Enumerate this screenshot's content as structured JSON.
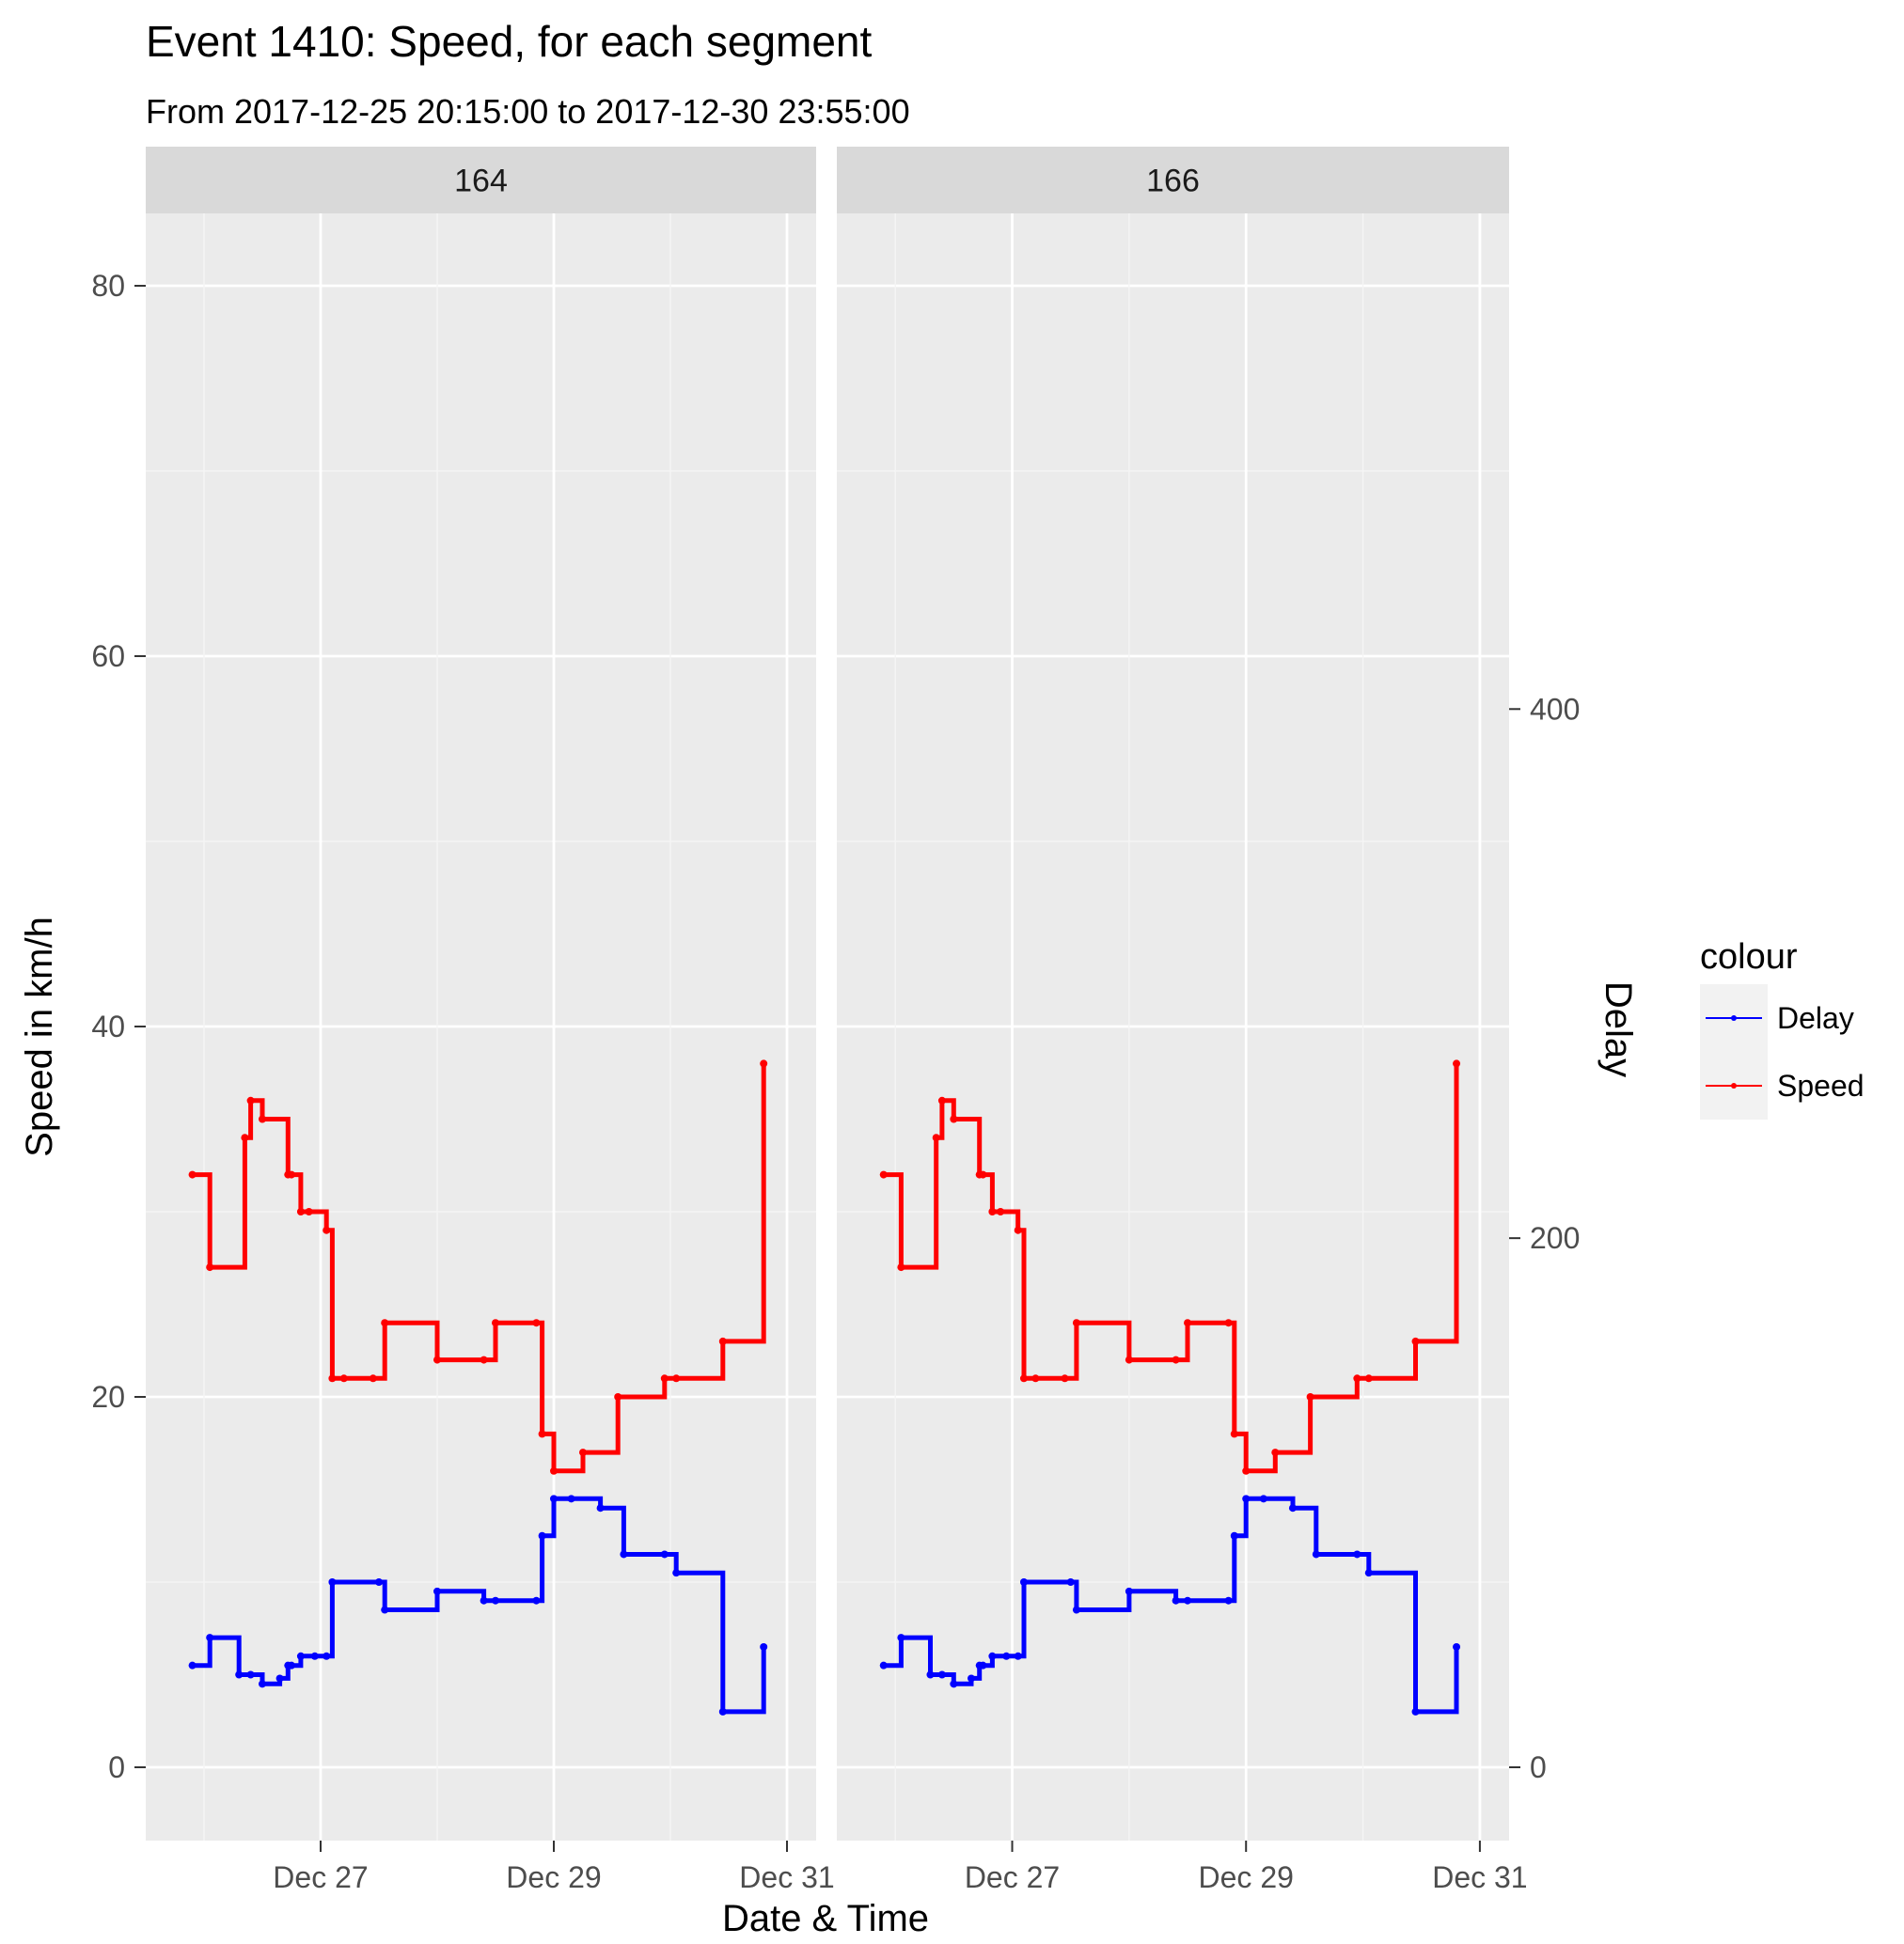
{
  "chart_data": {
    "type": "line",
    "title": "Event 1410: Speed, for each segment",
    "subtitle": "From 2017-12-25 20:15:00 to 2017-12-30 23:55:00",
    "xlabel": "Date & Time",
    "ylabel": "Speed in km/h",
    "y2label": "Delay",
    "x_ticks": [
      "Dec 27",
      "Dec 29",
      "Dec 31"
    ],
    "x_tick_dates": [
      2,
      4,
      6
    ],
    "y_ticks": [
      0,
      20,
      40,
      60,
      80
    ],
    "y2_ticks": [
      0,
      200,
      400
    ],
    "ylim": [
      -4,
      85
    ],
    "y2_per_y": 7,
    "xlim": [
      "2017-12-25 13:00",
      "2017-12-31 07:00"
    ],
    "grid": true,
    "legend": {
      "title": "colour",
      "position": "right",
      "entries": [
        {
          "label": "Delay",
          "color": "#0000ff"
        },
        {
          "label": "Speed",
          "color": "#ff0000"
        }
      ]
    },
    "facets": [
      {
        "label": "164",
        "series": [
          {
            "name": "Speed",
            "color": "#ff0000",
            "x": [
              0.9,
              1.05,
              1.35,
              1.4,
              1.5,
              1.72,
              1.75,
              1.83,
              1.9,
              2.05,
              2.1,
              2.2,
              2.45,
              2.55,
              3.0,
              3.4,
              3.5,
              3.85,
              3.9,
              4.0,
              4.25,
              4.55,
              4.95,
              5.05,
              5.45,
              5.8
            ],
            "values": [
              32,
              27,
              34,
              36,
              35,
              32,
              32,
              30,
              30,
              29,
              21,
              21,
              21,
              24,
              22,
              22,
              24,
              24,
              18,
              16,
              17,
              20,
              21,
              21,
              23,
              38
            ]
          },
          {
            "name": "Delay",
            "color": "#0000ff",
            "x": [
              0.9,
              1.05,
              1.3,
              1.4,
              1.5,
              1.65,
              1.72,
              1.75,
              1.83,
              1.95,
              2.05,
              2.1,
              2.5,
              2.55,
              3.0,
              3.4,
              3.5,
              3.85,
              3.9,
              4.0,
              4.15,
              4.4,
              4.6,
              4.95,
              5.05,
              5.45,
              5.8
            ],
            "values": [
              5.5,
              7.0,
              5.0,
              5.0,
              4.5,
              4.8,
              5.5,
              5.5,
              6.0,
              6.0,
              6.0,
              10.0,
              10.0,
              8.5,
              9.5,
              9.0,
              9.0,
              9.0,
              12.5,
              14.5,
              14.5,
              14.0,
              11.5,
              11.5,
              10.5,
              3.0,
              6.5
            ]
          }
        ]
      },
      {
        "label": "166",
        "series": [
          {
            "name": "Speed",
            "color": "#ff0000",
            "x": [
              0.9,
              1.05,
              1.35,
              1.4,
              1.5,
              1.72,
              1.75,
              1.83,
              1.9,
              2.05,
              2.1,
              2.2,
              2.45,
              2.55,
              3.0,
              3.4,
              3.5,
              3.85,
              3.9,
              4.0,
              4.25,
              4.55,
              4.95,
              5.05,
              5.45,
              5.8
            ],
            "values": [
              32,
              27,
              34,
              36,
              35,
              32,
              32,
              30,
              30,
              29,
              21,
              21,
              21,
              24,
              22,
              22,
              24,
              24,
              18,
              16,
              17,
              20,
              21,
              21,
              23,
              38
            ]
          },
          {
            "name": "Delay",
            "color": "#0000ff",
            "x": [
              0.9,
              1.05,
              1.3,
              1.4,
              1.5,
              1.65,
              1.72,
              1.75,
              1.83,
              1.95,
              2.05,
              2.1,
              2.5,
              2.55,
              3.0,
              3.4,
              3.5,
              3.85,
              3.9,
              4.0,
              4.15,
              4.4,
              4.6,
              4.95,
              5.05,
              5.45,
              5.8
            ],
            "values": [
              5.5,
              7.0,
              5.0,
              5.0,
              4.5,
              4.8,
              5.5,
              5.5,
              6.0,
              6.0,
              6.0,
              10.0,
              10.0,
              8.5,
              9.5,
              9.0,
              9.0,
              9.0,
              12.5,
              14.5,
              14.5,
              14.0,
              11.5,
              11.5,
              10.5,
              3.0,
              6.5
            ]
          }
        ]
      }
    ]
  }
}
